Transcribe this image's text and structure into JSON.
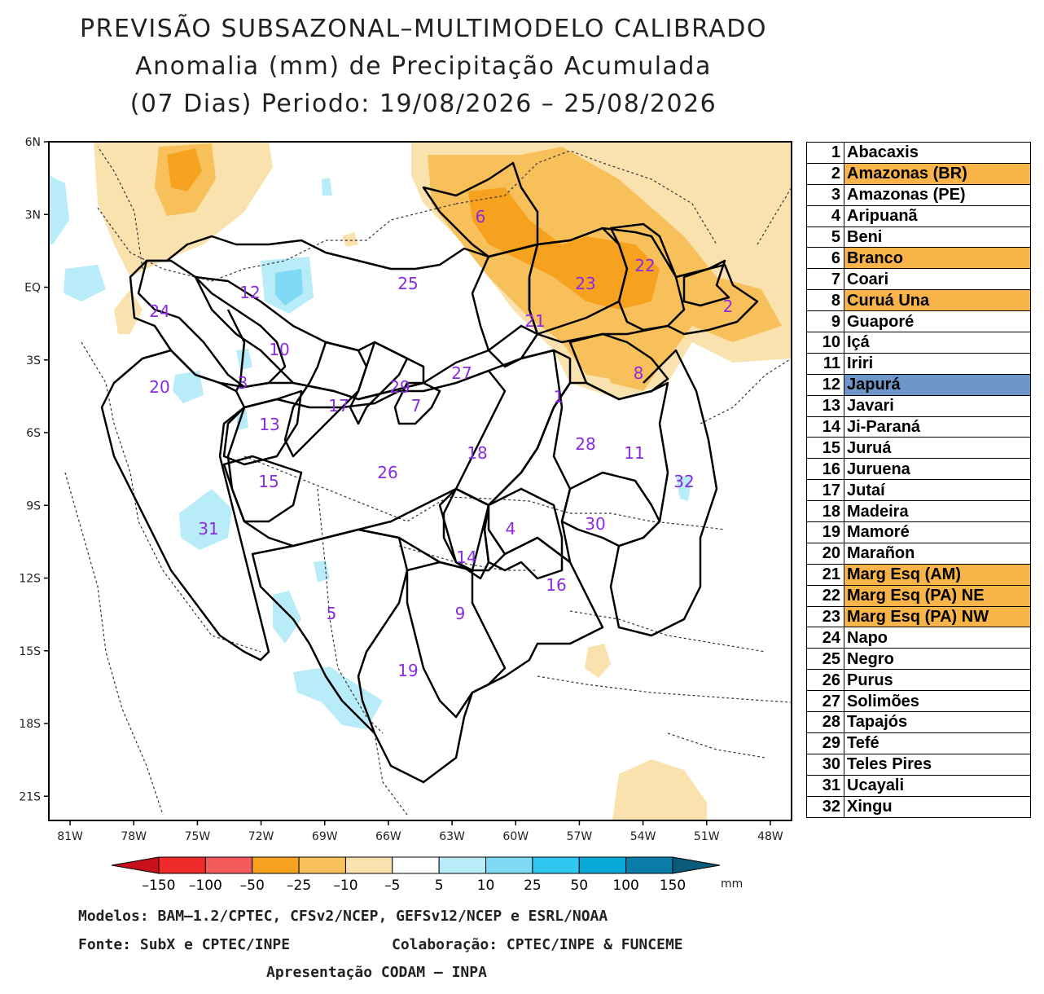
{
  "header": {
    "line1": "PREVISÃO SUBSAZONAL–MULTIMODELO CALIBRADO",
    "line2": "Anomalia (mm) de Precipitação Acumulada",
    "line3": "(07 Dias) Periodo: 19/08/2026 – 25/08/2026"
  },
  "axes": {
    "lat_labels": [
      "6N",
      "3N",
      "EQ",
      "3S",
      "6S",
      "9S",
      "12S",
      "15S",
      "18S",
      "21S"
    ],
    "lon_labels": [
      "81W",
      "78W",
      "75W",
      "72W",
      "69W",
      "66W",
      "63W",
      "60W",
      "57W",
      "54W",
      "51W",
      "48W"
    ],
    "lat_range": [
      -22,
      6
    ],
    "lon_range": [
      -82,
      -47
    ]
  },
  "colorbar": {
    "labels": [
      "–150",
      "–100",
      "–50",
      "–25",
      "–10",
      "–5",
      "5",
      "10",
      "25",
      "50",
      "100",
      "150"
    ],
    "unit": "mm",
    "colors": [
      "#c8101a",
      "#ef2a2a",
      "#f35a5a",
      "#f6a21f",
      "#f8c05a",
      "#fae2ae",
      "#ffffff",
      "#b8ecf8",
      "#7fdaf6",
      "#30c8f0",
      "#0aa8d8",
      "#0a7ca8",
      "#0a5a7c"
    ]
  },
  "regions": [
    {
      "num": "1",
      "name": "Abacaxis",
      "highlight": ""
    },
    {
      "num": "2",
      "name": "Amazonas (BR)",
      "highlight": "#f8b448"
    },
    {
      "num": "3",
      "name": "Amazonas (PE)",
      "highlight": ""
    },
    {
      "num": "4",
      "name": "Aripuanã",
      "highlight": ""
    },
    {
      "num": "5",
      "name": "Beni",
      "highlight": ""
    },
    {
      "num": "6",
      "name": "Branco",
      "highlight": "#f8b448"
    },
    {
      "num": "7",
      "name": "Coari",
      "highlight": ""
    },
    {
      "num": "8",
      "name": "Curuá Una",
      "highlight": "#f8b448"
    },
    {
      "num": "9",
      "name": "Guaporé",
      "highlight": ""
    },
    {
      "num": "10",
      "name": "Içá",
      "highlight": ""
    },
    {
      "num": "11",
      "name": "Iriri",
      "highlight": ""
    },
    {
      "num": "12",
      "name": "Japurá",
      "highlight": "#6f96c8"
    },
    {
      "num": "13",
      "name": "Javari",
      "highlight": ""
    },
    {
      "num": "14",
      "name": "Ji-Paraná",
      "highlight": ""
    },
    {
      "num": "15",
      "name": "Juruá",
      "highlight": ""
    },
    {
      "num": "16",
      "name": "Juruena",
      "highlight": ""
    },
    {
      "num": "17",
      "name": "Jutaí",
      "highlight": ""
    },
    {
      "num": "18",
      "name": "Madeira",
      "highlight": ""
    },
    {
      "num": "19",
      "name": "Mamoré",
      "highlight": ""
    },
    {
      "num": "20",
      "name": "Marañon",
      "highlight": ""
    },
    {
      "num": "21",
      "name": "Marg Esq (AM)",
      "highlight": "#f8b448"
    },
    {
      "num": "22",
      "name": "Marg Esq (PA) NE",
      "highlight": "#f8b448"
    },
    {
      "num": "23",
      "name": "Marg Esq (PA) NW",
      "highlight": "#f8b448"
    },
    {
      "num": "24",
      "name": "Napo",
      "highlight": ""
    },
    {
      "num": "25",
      "name": "Negro",
      "highlight": ""
    },
    {
      "num": "26",
      "name": "Purus",
      "highlight": ""
    },
    {
      "num": "27",
      "name": "Solimões",
      "highlight": ""
    },
    {
      "num": "28",
      "name": "Tapajós",
      "highlight": ""
    },
    {
      "num": "29",
      "name": "Tefé",
      "highlight": ""
    },
    {
      "num": "30",
      "name": "Teles Pires",
      "highlight": ""
    },
    {
      "num": "31",
      "name": "Ucayali",
      "highlight": ""
    },
    {
      "num": "32",
      "name": "Xingu",
      "highlight": ""
    }
  ],
  "footer": {
    "models": "Modelos: BAM–1.2/CPTEC, CFSv2/NCEP, GEFSv12/NCEP e ESRL/NOAA",
    "source": "Fonte: SubX e CPTEC/INPE",
    "collab": "Colaboração: CPTEC/INPE & FUNCEME",
    "presentation": "Apresentação CODAM – INPA"
  }
}
